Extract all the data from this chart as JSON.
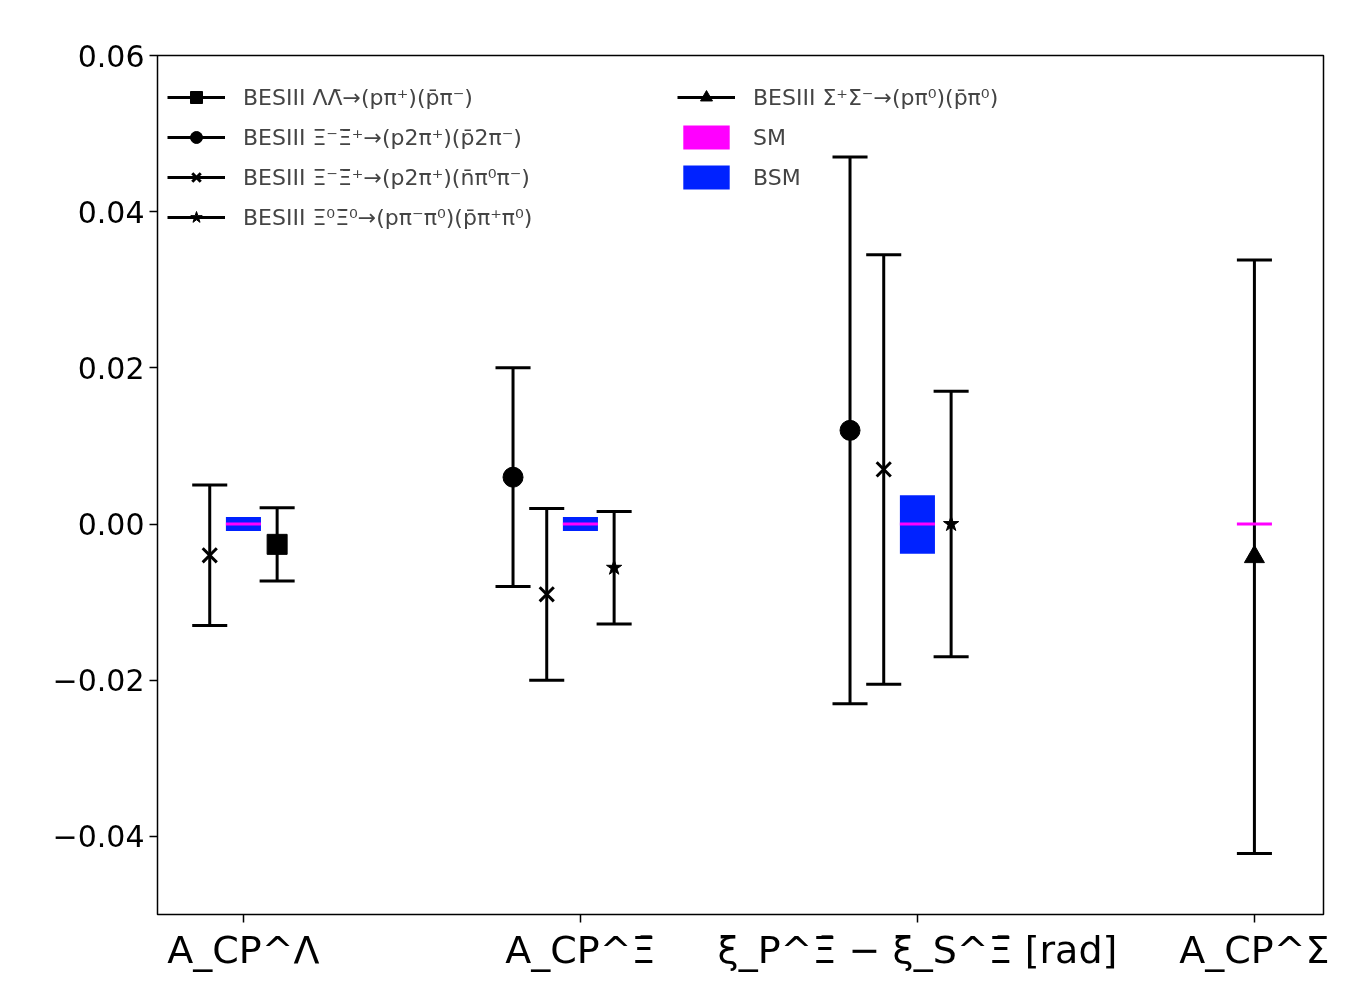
{
  "chart_data": {
    "type": "scatter",
    "categories": [
      "A_CP^Λ",
      "A_CP^Ξ̄",
      "ξ_P^Ξ̄ − ξ_S^Ξ̄ [rad]",
      "A_CP^Σ"
    ],
    "ylim": [
      -0.05,
      0.06
    ],
    "yticks": [
      {
        "value": -0.04,
        "label": "−0.04"
      },
      {
        "value": -0.02,
        "label": "−0.02"
      },
      {
        "value": 0,
        "label": "0.00"
      },
      {
        "value": 0.02,
        "label": "0.02"
      },
      {
        "value": 0.04,
        "label": "0.04"
      },
      {
        "value": 0.06,
        "label": "0.06"
      }
    ],
    "grid": false,
    "legend": "top left",
    "series": [
      {
        "name": "BESIII ΛΛ̄→(pπ⁺)(p̄π⁻)",
        "color": "#000000",
        "marker": "square",
        "values": [
          -0.0026,
          null,
          null,
          null
        ],
        "errors": [
          0.0047,
          null,
          null,
          null
        ]
      },
      {
        "name": "BESIII Ξ⁻Ξ̄⁺→(p2π⁺)(p̄2π⁻)",
        "color": "#000000",
        "marker": "circle",
        "values": [
          null,
          0.006,
          0.012,
          null
        ],
        "errors": [
          null,
          0.014,
          0.035,
          null
        ]
      },
      {
        "name": "BESIII Ξ⁻Ξ̄⁺→(p2π⁺)(n̄π⁰π⁻)",
        "color": "#000000",
        "marker": "cross",
        "values": [
          -0.004,
          -0.009,
          0.007,
          null
        ],
        "errors": [
          0.009,
          0.011,
          0.0275,
          null
        ]
      },
      {
        "name": "BESIII Ξ⁰Ξ̄⁰→(pπ⁻π⁰)(p̄π⁺π⁰)",
        "color": "#000000",
        "marker": "star",
        "values": [
          null,
          -0.0056,
          0.0,
          null
        ],
        "errors": [
          null,
          0.0072,
          0.017,
          null
        ]
      },
      {
        "name": "BESIII Σ⁺Σ̄⁻→(pπ⁰)(p̄π⁰)",
        "color": "#000000",
        "marker": "triangle",
        "values": [
          null,
          null,
          null,
          -0.0042
        ],
        "errors": [
          null,
          null,
          null,
          0.038
        ]
      },
      {
        "name": "SM",
        "type": "bar",
        "color": "#ff00ff",
        "base": [
          -0.0002,
          -0.0002,
          -0.0002,
          -0.0002
        ],
        "values": [
          0.0004,
          0.0004,
          0.0004,
          0.0004
        ]
      },
      {
        "name": "BSM",
        "type": "bar",
        "color": "#0022ff",
        "base": [
          -0.0009,
          -0.0009,
          -0.0038,
          null
        ],
        "values": [
          0.0018,
          0.0018,
          0.0075,
          null
        ]
      }
    ]
  }
}
